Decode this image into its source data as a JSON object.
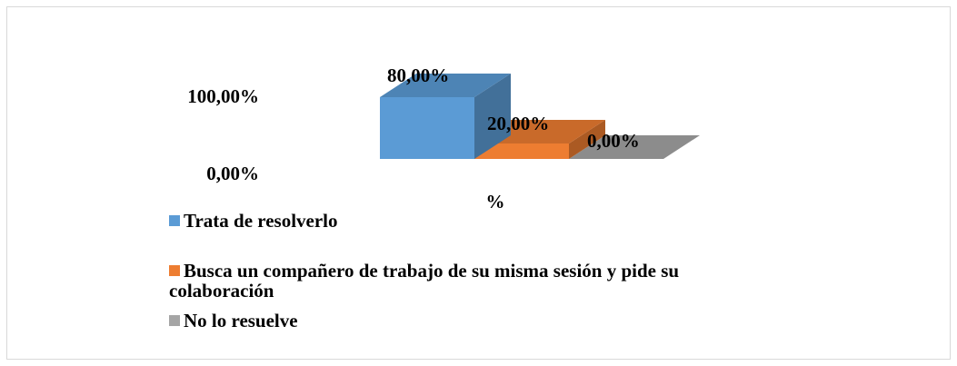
{
  "chart_data": {
    "type": "bar3d",
    "categories": [
      "%"
    ],
    "series": [
      {
        "name": "Trata de resolverlo",
        "color": "#5b9bd5",
        "values": [
          80
        ],
        "value_labels": [
          "80,00%"
        ]
      },
      {
        "name": "Busca un compañero de trabajo de su misma sesión y pide su colaboración",
        "color": "#ed7d31",
        "values": [
          20
        ],
        "value_labels": [
          "20,00%"
        ]
      },
      {
        "name": "No lo resuelve",
        "color": "#a5a5a5",
        "values": [
          0
        ],
        "value_labels": [
          "0,00%"
        ]
      }
    ],
    "ylim": [
      0,
      100
    ],
    "yticks": [
      {
        "value": 100,
        "label": "100,00%"
      },
      {
        "value": 0,
        "label": "0,00%"
      }
    ]
  }
}
